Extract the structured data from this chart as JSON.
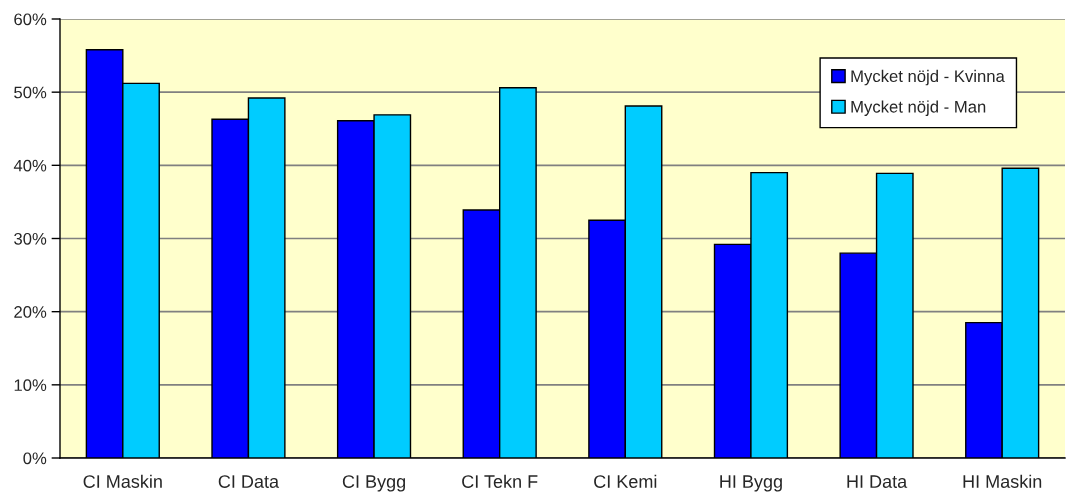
{
  "chart_data": {
    "type": "bar",
    "categories": [
      "CI Maskin",
      "CI Data",
      "CI Bygg",
      "CI Tekn F",
      "CI Kemi",
      "HI Bygg",
      "HI Data",
      "HI Maskin"
    ],
    "series": [
      {
        "name": "Mycket nöjd - Kvinna",
        "color": "#0000ff",
        "values": [
          55.8,
          46.3,
          46.1,
          33.9,
          32.5,
          29.2,
          28.0,
          18.5
        ]
      },
      {
        "name": "Mycket nöjd - Man",
        "color": "#00ccff",
        "values": [
          51.2,
          49.2,
          46.9,
          50.6,
          48.1,
          39.0,
          38.9,
          39.6
        ]
      }
    ],
    "ylim": [
      0,
      60
    ],
    "yticks": [
      {
        "value": 0,
        "label": "0%"
      },
      {
        "value": 10,
        "label": "10%"
      },
      {
        "value": 20,
        "label": "20%"
      },
      {
        "value": 30,
        "label": "30%"
      },
      {
        "value": 40,
        "label": "40%"
      },
      {
        "value": 50,
        "label": "50%"
      },
      {
        "value": 60,
        "label": "60%"
      }
    ],
    "grid": "y",
    "legend": "top right"
  }
}
